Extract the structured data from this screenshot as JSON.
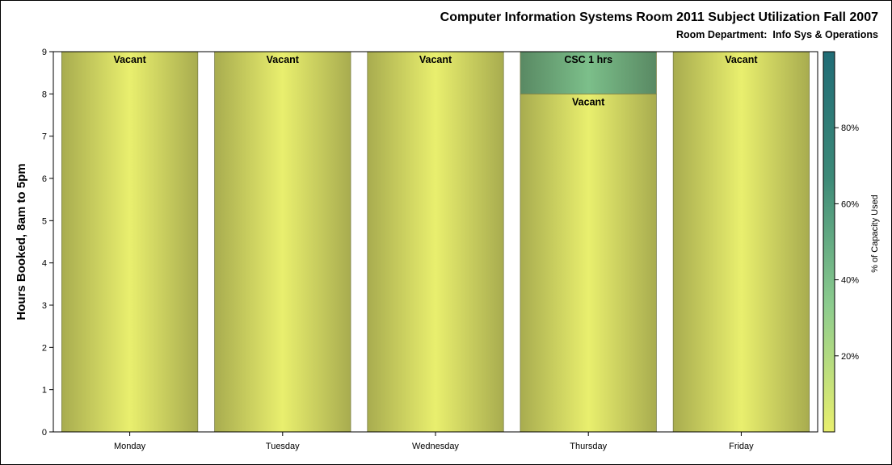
{
  "chart_data": {
    "type": "bar",
    "title": "Computer Information Systems Room 2011 Subject Utilization Fall 2007",
    "subtitle": "Room Department:  Info Sys & Operations",
    "ylabel": "Hours Booked, 8am to 5pm",
    "xlabel": "",
    "ylim": [
      0,
      9
    ],
    "yticks": [
      "0",
      "1",
      "2",
      "3",
      "4",
      "5",
      "6",
      "7",
      "8",
      "9"
    ],
    "categories": [
      "Monday",
      "Tuesday",
      "Wednesday",
      "Thursday",
      "Friday"
    ],
    "segments": [
      [
        {
          "label": "Vacant",
          "value": 9,
          "capacity_pct": 0
        }
      ],
      [
        {
          "label": "Vacant",
          "value": 9,
          "capacity_pct": 0
        }
      ],
      [
        {
          "label": "Vacant",
          "value": 9,
          "capacity_pct": 0
        }
      ],
      [
        {
          "label": "Vacant",
          "value": 8,
          "capacity_pct": 0
        },
        {
          "label": "CSC 1 hrs",
          "value": 1,
          "capacity_pct": 40
        }
      ],
      [
        {
          "label": "Vacant",
          "value": 9,
          "capacity_pct": 0
        }
      ]
    ],
    "colorbar": {
      "label": "% of Capacity Used",
      "ticks": [
        20,
        40,
        60,
        80
      ],
      "tick_labels": [
        "20%",
        "40%",
        "60%",
        "80%"
      ],
      "range": [
        0,
        100
      ],
      "colors": [
        "#e9ef6e",
        "#8ccc8e",
        "#3d8a78",
        "#206c76"
      ]
    },
    "grid": false,
    "legend": "right"
  }
}
